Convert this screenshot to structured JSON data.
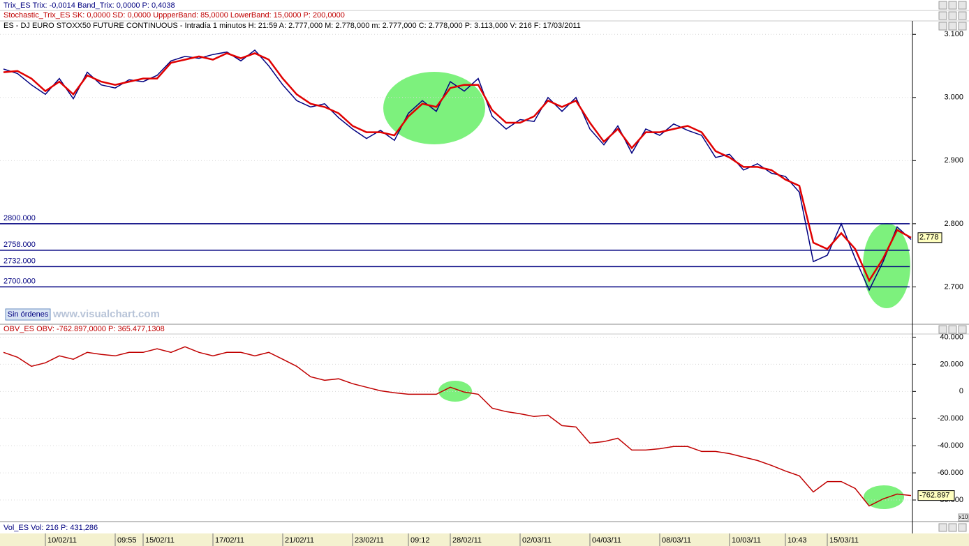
{
  "indicators": [
    {
      "text": "Trix_ES  Trix: -0,0014  Band_Trix: 0,0000  P: 0,4038",
      "color": "#000080"
    },
    {
      "text": "Stochastic_Trix_ES  SK: 0,0000  SD: 0,0000  UppperBand: 85,0000  LowerBand: 15,0000  P: 200,0000",
      "color": "#c00000"
    }
  ],
  "ui": {
    "button": "Sin órdenes",
    "watermark": "www.visualchart.com",
    "volume_header": "Vol_ES  Vol: 216  P: 431,286",
    "scale_badge": "x10"
  },
  "chart_data": [
    {
      "type": "line",
      "title": "ES - DJ EURO STOXX50 FUTURE CONTINUOUS - Intradía 1 minutos  H: 21:59  A: 2.777,000  M: 2.778,000  m: 2.777,000  C: 2.778,000  P: 3.113,000  V: 216  F: 17/03/2011",
      "categories": [
        null,
        null,
        null,
        "10/02/11",
        null,
        null,
        null,
        null,
        "09:55",
        null,
        "15/02/11",
        null,
        null,
        null,
        null,
        "17/02/11",
        null,
        null,
        null,
        null,
        "21/02/11",
        null,
        null,
        null,
        null,
        "23/02/11",
        null,
        null,
        null,
        "09:12",
        null,
        null,
        "28/02/11",
        null,
        null,
        null,
        null,
        "02/03/11",
        null,
        null,
        null,
        null,
        "04/03/11",
        null,
        null,
        null,
        null,
        "08/03/11",
        null,
        null,
        null,
        null,
        "10/03/11",
        null,
        null,
        null,
        "10:43",
        null,
        null,
        "15/03/11",
        null,
        null,
        null,
        null,
        null,
        null
      ],
      "series": [
        {
          "color": "#000080",
          "values": [
            3045,
            3038,
            3020,
            3005,
            3030,
            2998,
            3040,
            3020,
            3015,
            3028,
            3025,
            3035,
            3058,
            3065,
            3062,
            3068,
            3072,
            3058,
            3075,
            3050,
            3020,
            2995,
            2985,
            2990,
            2968,
            2950,
            2935,
            2948,
            2932,
            2975,
            2995,
            2978,
            3025,
            3010,
            3030,
            2970,
            2950,
            2965,
            2962,
            3000,
            2978,
            3000,
            2950,
            2925,
            2955,
            2912,
            2950,
            2940,
            2958,
            2948,
            2940,
            2905,
            2910,
            2885,
            2895,
            2880,
            2875,
            2850,
            2740,
            2750,
            2800,
            2745,
            2695,
            2740,
            2795,
            2775
          ]
        },
        {
          "color": "#e00000",
          "values": [
            3040,
            3042,
            3030,
            3010,
            3025,
            3005,
            3035,
            3025,
            3020,
            3025,
            3030,
            3030,
            3055,
            3060,
            3065,
            3060,
            3070,
            3062,
            3070,
            3060,
            3030,
            3005,
            2990,
            2985,
            2975,
            2955,
            2945,
            2945,
            2940,
            2970,
            2990,
            2985,
            3015,
            3020,
            3020,
            2980,
            2960,
            2960,
            2970,
            2995,
            2985,
            2995,
            2960,
            2930,
            2950,
            2920,
            2945,
            2945,
            2950,
            2955,
            2945,
            2915,
            2905,
            2890,
            2890,
            2885,
            2870,
            2860,
            2770,
            2760,
            2785,
            2760,
            2710,
            2745,
            2790,
            2778
          ]
        }
      ],
      "ylim": [
        2643,
        3108
      ],
      "yticks": [
        {
          "value": 3100,
          "label": "3.100"
        },
        {
          "value": 3000,
          "label": "3.000"
        },
        {
          "value": 2900,
          "label": "2.900"
        },
        {
          "value": 2800,
          "label": "2.800"
        },
        {
          "value": 2700,
          "label": "2.700"
        }
      ],
      "hlines": [
        {
          "value": 2800,
          "label": "2800.000"
        },
        {
          "value": 2758,
          "label": "2758.000"
        },
        {
          "value": 2732,
          "label": "2732.000"
        },
        {
          "value": 2700,
          "label": "2700.000"
        }
      ],
      "last": {
        "value": 2778,
        "label": "2.778"
      }
    },
    {
      "type": "line",
      "title": "OBV_ES  OBV: -762.897,0000  P: 365.477,1308",
      "color": "#c00000",
      "values": [
        28800,
        25200,
        18500,
        21100,
        26200,
        23700,
        28800,
        27300,
        26200,
        28800,
        28800,
        31400,
        28800,
        32900,
        28800,
        26200,
        28800,
        28800,
        26200,
        28800,
        23700,
        18500,
        10800,
        8200,
        9300,
        5700,
        3100,
        500,
        -1000,
        -2100,
        -2100,
        -2100,
        3100,
        -500,
        -2100,
        -12300,
        -14900,
        -16500,
        -18500,
        -17500,
        -25200,
        -26200,
        -38100,
        -37000,
        -34500,
        -43200,
        -43200,
        -42200,
        -40600,
        -40600,
        -44200,
        -44200,
        -45800,
        -48400,
        -50900,
        -54500,
        -58600,
        -62200,
        -74100,
        -66400,
        -66400,
        -71500,
        -84400,
        -79200,
        -75600,
        -76700
      ],
      "ylim": [
        -95400,
        42300
      ],
      "yticks": [
        {
          "value": 40000,
          "label": "40.000"
        },
        {
          "value": 20000,
          "label": "20.000"
        },
        0,
        {
          "value": -20000,
          "label": "-20.000"
        },
        {
          "value": -40000,
          "label": "-40.000"
        },
        {
          "value": -60000,
          "label": "-60.000"
        },
        {
          "value": -80000,
          "label": "-80.000"
        }
      ],
      "last_label": "-762.897"
    }
  ]
}
